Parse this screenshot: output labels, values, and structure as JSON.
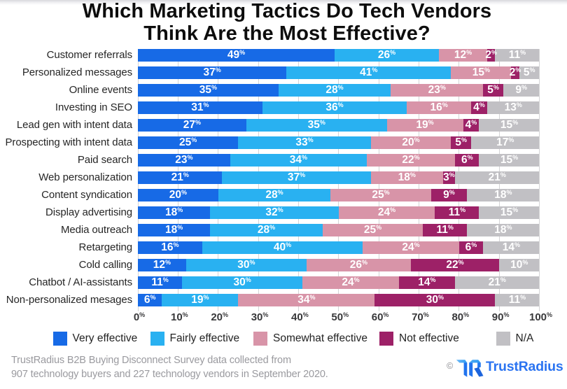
{
  "title": {
    "line1": "Which Marketing Tactics Do Tech Vendors",
    "line2": "Think Are the Most Effective?"
  },
  "chart_data": {
    "type": "bar",
    "orientation": "horizontal",
    "stacked": true,
    "value_suffix": "%",
    "xlim": [
      0,
      100
    ],
    "x_ticks": [
      "0%",
      "10%",
      "20%",
      "30%",
      "40%",
      "50%",
      "60%",
      "70%",
      "80%",
      "90%",
      "100%"
    ],
    "grid": true,
    "legend_position": "bottom",
    "categories": [
      "Customer referrals",
      "Personalized messages",
      "Online events",
      "Investing in SEO",
      "Lead gen with intent data",
      "Prospecting with intent data",
      "Paid search",
      "Web personalization",
      "Content syndication",
      "Display advertising",
      "Media outreach",
      "Retargeting",
      "Cold calling",
      "Chatbot / AI-assistants",
      "Non-personalized mesages"
    ],
    "series": [
      {
        "name": "Very effective",
        "color": "#176ae6",
        "values": [
          49,
          37,
          35,
          31,
          27,
          25,
          23,
          21,
          20,
          18,
          18,
          16,
          12,
          11,
          6
        ]
      },
      {
        "name": "Fairly effective",
        "color": "#29b1f1",
        "values": [
          26,
          41,
          28,
          36,
          35,
          33,
          34,
          37,
          28,
          32,
          28,
          40,
          30,
          30,
          19
        ]
      },
      {
        "name": "Somewhat effective",
        "color": "#d894a8",
        "values": [
          12,
          15,
          23,
          16,
          19,
          20,
          22,
          18,
          25,
          24,
          25,
          24,
          26,
          24,
          34
        ]
      },
      {
        "name": "Not effective",
        "color": "#9d2167",
        "values": [
          2,
          2,
          5,
          4,
          4,
          5,
          6,
          3,
          9,
          11,
          11,
          6,
          22,
          14,
          30
        ]
      },
      {
        "name": "N/A",
        "color": "#c1c0c4",
        "values": [
          11,
          5,
          9,
          13,
          15,
          17,
          15,
          21,
          18,
          15,
          18,
          14,
          10,
          21,
          11
        ]
      }
    ]
  },
  "legend": {
    "items": [
      {
        "label": "Very effective",
        "color": "#176ae6"
      },
      {
        "label": "Fairly effective",
        "color": "#29b1f1"
      },
      {
        "label": "Somewhat effective",
        "color": "#d894a8"
      },
      {
        "label": "Not effective",
        "color": "#9d2167"
      },
      {
        "label": "N/A",
        "color": "#c1c0c4"
      }
    ]
  },
  "footer": {
    "line1": "TrustRadius B2B Buying Disconnect Survey data collected from",
    "line2": "907 technology buyers and 227 technology vendors in September 2020.",
    "copyright": "©",
    "brand": "TrustRadius"
  }
}
